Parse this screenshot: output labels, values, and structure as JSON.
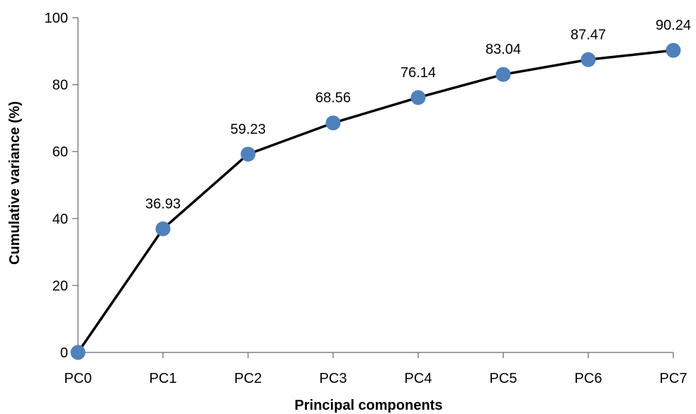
{
  "chart_data": {
    "type": "line",
    "title": "",
    "xlabel": "Principal components",
    "ylabel": "Cumulative variance (%)",
    "categories": [
      "PC0",
      "PC1",
      "PC2",
      "PC3",
      "PC4",
      "PC5",
      "PC6",
      "PC7"
    ],
    "series": [
      {
        "values": [
          0,
          36.93,
          59.23,
          68.56,
          76.14,
          83.04,
          87.47,
          90.24
        ],
        "data_labels": [
          "",
          "36.93",
          "59.23",
          "68.56",
          "76.14",
          "83.04",
          "87.47",
          "90.24"
        ],
        "line_color": "#000000",
        "marker_color": "#4F81BD",
        "marker": "circle"
      }
    ],
    "ylim": [
      0,
      100
    ],
    "yticks": [
      0,
      20,
      40,
      60,
      80,
      100
    ],
    "ytick_labels": [
      "0",
      "20",
      "40",
      "60",
      "80",
      "100"
    ],
    "grid": false,
    "legend": "none"
  }
}
